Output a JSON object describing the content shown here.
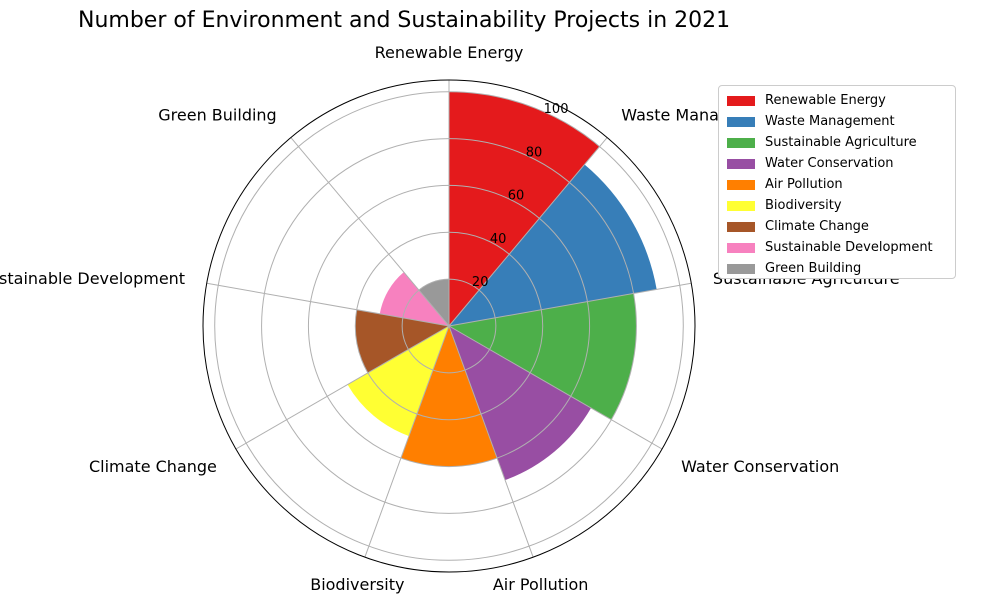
{
  "chart_data": {
    "type": "polar-bar",
    "title": "Number of Environment and Sustainability Projects in 2021",
    "categories": [
      "Renewable Energy",
      "Waste Management",
      "Sustainable Agriculture",
      "Water Conservation",
      "Air Pollution",
      "Biodiversity",
      "Climate Change",
      "Sustainable Development",
      "Green Building"
    ],
    "values": [
      100,
      90,
      80,
      70,
      60,
      50,
      40,
      30,
      20
    ],
    "colors": [
      "#e41a1c",
      "#377eb8",
      "#4daf4a",
      "#984ea3",
      "#ff7f00",
      "#ffff33",
      "#a65628",
      "#f781bf",
      "#999999"
    ],
    "rticks": [
      20,
      40,
      60,
      80,
      100
    ],
    "rlim": [
      0,
      105
    ],
    "grid": true,
    "legend_position": "right"
  }
}
